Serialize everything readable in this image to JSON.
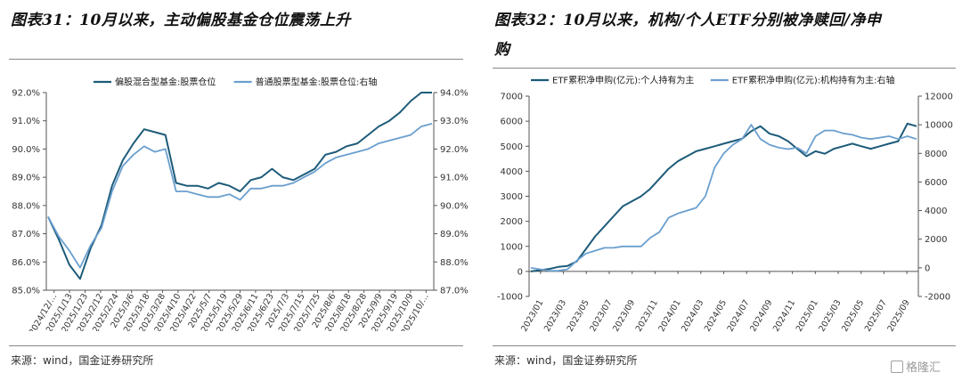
{
  "left": {
    "title": "图表31：10月以来，主动偏股基金仓位震荡上升",
    "source": "来源：wind，国金证券研究所"
  },
  "right": {
    "title_line1": "图表32：10月以来，机构/个人ETF分别被净赎回/净申",
    "title_line2": "购",
    "source": "来源：wind，国金证券研究所"
  },
  "watermark": "格隆汇",
  "colors": {
    "dark": "#1d5b79",
    "light": "#6a9fcf"
  },
  "chart_data": [
    {
      "type": "line",
      "legend_position": "top",
      "x_ticks": [
        "2024/12/…",
        "2025/1/13",
        "2025/1/23",
        "2025/2/12",
        "2025/2/24",
        "2025/3/6",
        "2025/3/18",
        "2025/3/28",
        "2025/4/10",
        "2025/4/22",
        "2025/5/7",
        "2025/5/19",
        "2025/5/29",
        "2025/6/11",
        "2025/6/23",
        "2025/7/3",
        "2025/7/15",
        "2025/7/25",
        "2025/8/6",
        "2025/8/18",
        "2025/8/28",
        "2025/9/9",
        "2025/9/19",
        "2025/10/9",
        "2025/10/…"
      ],
      "y_left": {
        "range": [
          85,
          92
        ],
        "ticks": [
          "85.0%",
          "86.0%",
          "87.0%",
          "88.0%",
          "89.0%",
          "90.0%",
          "91.0%",
          "92.0%"
        ]
      },
      "y_right": {
        "range": [
          87,
          94
        ],
        "ticks": [
          "87.0%",
          "88.0%",
          "89.0%",
          "90.0%",
          "91.0%",
          "92.0%",
          "93.0%",
          "94.0%"
        ]
      },
      "series": [
        {
          "name": "偏股混合型基金:股票仓位",
          "axis": "left",
          "values": [
            87.6,
            86.8,
            85.9,
            85.4,
            86.5,
            87.3,
            88.7,
            89.6,
            90.2,
            90.7,
            90.6,
            90.5,
            88.8,
            88.7,
            88.7,
            88.6,
            88.8,
            88.7,
            88.5,
            88.9,
            89.0,
            89.3,
            89.0,
            88.9,
            89.1,
            89.3,
            89.8,
            89.9,
            90.1,
            90.2,
            90.5,
            90.8,
            91.0,
            91.3,
            91.7,
            92.0,
            92.0
          ]
        },
        {
          "name": "普通股票型基金:股票仓位:右轴",
          "axis": "right",
          "values": [
            89.6,
            88.9,
            88.4,
            87.8,
            88.6,
            89.2,
            90.5,
            91.4,
            91.8,
            92.1,
            91.9,
            92.0,
            90.5,
            90.5,
            90.4,
            90.3,
            90.3,
            90.4,
            90.2,
            90.6,
            90.6,
            90.7,
            90.7,
            90.8,
            91.0,
            91.2,
            91.5,
            91.7,
            91.8,
            91.9,
            92.0,
            92.2,
            92.3,
            92.4,
            92.5,
            92.8,
            92.9
          ]
        }
      ]
    },
    {
      "type": "line",
      "legend_position": "top",
      "x_ticks": [
        "2023/01",
        "2023/03",
        "2023/05",
        "2023/07",
        "2023/09",
        "2023/11",
        "2024/01",
        "2024/03",
        "2024/05",
        "2024/07",
        "2024/09",
        "2024/11",
        "2025/01",
        "2025/03",
        "2025/05",
        "2025/07",
        "2025/09"
      ],
      "y_left": {
        "range": [
          -1000,
          7000
        ],
        "ticks": [
          "-1000",
          "0",
          "1000",
          "2000",
          "3000",
          "4000",
          "5000",
          "6000",
          "7000"
        ]
      },
      "y_right": {
        "range": [
          -2000,
          12000
        ],
        "ticks": [
          "-2000",
          "0",
          "2000",
          "4000",
          "6000",
          "8000",
          "10000",
          "12000"
        ]
      },
      "series": [
        {
          "name": "ETF累积净申购(亿元):个人持有为主",
          "axis": "left",
          "values": [
            0,
            50,
            100,
            180,
            220,
            400,
            900,
            1400,
            1800,
            2200,
            2600,
            2800,
            3000,
            3300,
            3700,
            4100,
            4400,
            4600,
            4800,
            4900,
            5000,
            5100,
            5200,
            5300,
            5600,
            5800,
            5500,
            5400,
            5200,
            4900,
            4600,
            4800,
            4700,
            4900,
            5000,
            5100,
            5000,
            4900,
            5000,
            5100,
            5200,
            5900,
            5800
          ]
        },
        {
          "name": "ETF累积净申购(亿元):机构持有为主:右轴",
          "axis": "right",
          "values": [
            0,
            -100,
            -200,
            -200,
            -100,
            500,
            1000,
            1200,
            1400,
            1400,
            1500,
            1500,
            1500,
            2100,
            2500,
            3500,
            3800,
            4000,
            4200,
            5000,
            7000,
            8000,
            8600,
            9000,
            10000,
            9000,
            8600,
            8400,
            8300,
            8400,
            8000,
            9200,
            9600,
            9600,
            9400,
            9300,
            9100,
            9000,
            9100,
            9200,
            9000,
            9200,
            9000
          ]
        }
      ]
    }
  ]
}
